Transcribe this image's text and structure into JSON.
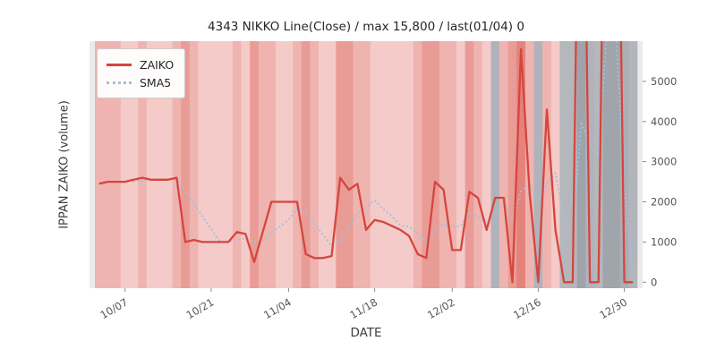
{
  "figure": {
    "title": "4343 NIKKO Line(Close) / max 15,800 / last(01/04) 0",
    "xlabel": "DATE",
    "ylabel": "IPPAN ZAIKO (volume)"
  },
  "chart_data": {
    "type": "line",
    "title": "4343 NIKKO Line(Close) / max 15,800 / last(01/04) 0",
    "xlabel": "DATE",
    "ylabel": "IPPAN ZAIKO (volume)",
    "ylim": [
      -150,
      6000
    ],
    "yticks": [
      0,
      1000,
      2000,
      3000,
      4000,
      5000
    ],
    "ytick_side": "right",
    "grid": false,
    "legend_position": "upper-left",
    "plot_bg": "#ebebeb",
    "dates": [
      "10/04",
      "10/05",
      "10/06",
      "10/07",
      "10/08",
      "10/11",
      "10/12",
      "10/13",
      "10/14",
      "10/15",
      "10/18",
      "10/19",
      "10/20",
      "10/21",
      "10/22",
      "10/25",
      "10/26",
      "10/27",
      "10/28",
      "10/29",
      "11/01",
      "11/02",
      "11/04",
      "11/05",
      "11/08",
      "11/09",
      "11/10",
      "11/11",
      "11/12",
      "11/15",
      "11/16",
      "11/17",
      "11/18",
      "11/19",
      "11/22",
      "11/24",
      "11/25",
      "11/26",
      "11/29",
      "11/30",
      "12/01",
      "12/02",
      "12/03",
      "12/06",
      "12/07",
      "12/08",
      "12/09",
      "12/10",
      "12/13",
      "12/14",
      "12/15",
      "12/16",
      "12/17",
      "12/20",
      "12/21",
      "12/22",
      "12/23",
      "12/24",
      "12/27",
      "12/28",
      "12/29",
      "12/30",
      "01/04"
    ],
    "xticks": [
      {
        "index": 3,
        "label": "10/07"
      },
      {
        "index": 13,
        "label": "10/21"
      },
      {
        "index": 22,
        "label": "11/04"
      },
      {
        "index": 32,
        "label": "11/18"
      },
      {
        "index": 41,
        "label": "12/02"
      },
      {
        "index": 51,
        "label": "12/16"
      },
      {
        "index": 61,
        "label": "12/30"
      }
    ],
    "series": [
      {
        "name": "ZAIKO",
        "color": "#d6453e",
        "style": "solid",
        "values": [
          2450,
          2500,
          2500,
          2500,
          2550,
          2600,
          2550,
          2550,
          2550,
          2600,
          1000,
          1050,
          1000,
          1000,
          1000,
          1000,
          1250,
          1200,
          500,
          1250,
          2000,
          2000,
          2000,
          2000,
          700,
          600,
          600,
          650,
          2600,
          2300,
          2450,
          1300,
          1550,
          1500,
          1400,
          1300,
          1150,
          700,
          600,
          2500,
          2300,
          800,
          800,
          2250,
          2100,
          1300,
          2100,
          2100,
          0,
          5800,
          2200,
          0,
          4300,
          1300,
          0,
          0,
          15800,
          0,
          0,
          15800,
          15800,
          0,
          0
        ]
      },
      {
        "name": "SMA5",
        "color": "#9ec2dd",
        "style": "dotted",
        "values": [
          null,
          null,
          null,
          null,
          2500,
          2530,
          2540,
          2550,
          2560,
          2570,
          2250,
          1950,
          1640,
          1330,
          1010,
          1010,
          1050,
          1090,
          990,
          1040,
          1240,
          1390,
          1550,
          1850,
          1740,
          1460,
          1180,
          910,
          1030,
          1350,
          1720,
          1860,
          2040,
          1820,
          1640,
          1410,
          1380,
          1210,
          1030,
          1250,
          1450,
          1380,
          1400,
          1730,
          1650,
          1450,
          1710,
          1970,
          1520,
          2260,
          2440,
          2020,
          2460,
          2720,
          1560,
          1120,
          4000,
          3420,
          3160,
          6300,
          6300,
          2400,
          150
        ]
      }
    ],
    "bands": [
      "#efb4b0",
      "#efb4b0",
      "#efb4b0",
      "#f4cbc8",
      "#f4cbc8",
      "#efb4b0",
      "#f4cbc8",
      "#f4cbc8",
      "#f4cbc8",
      "#efb4b0",
      "#e99b96",
      "#efb4b0",
      "#f4cbc8",
      "#f4cbc8",
      "#f4cbc8",
      "#f4cbc8",
      "#efb4b0",
      "#f4cbc8",
      "#e99b96",
      "#efb4b0",
      "#efb4b0",
      "#f4cbc8",
      "#f4cbc8",
      "#efb4b0",
      "#e99b96",
      "#efb4b0",
      "#f4cbc8",
      "#f4cbc8",
      "#e99b96",
      "#e99b96",
      "#efb4b0",
      "#efb4b0",
      "#f4cbc8",
      "#f4cbc8",
      "#f4cbc8",
      "#f4cbc8",
      "#f4cbc8",
      "#efb4b0",
      "#e99b96",
      "#e99b96",
      "#efb4b0",
      "#efb4b0",
      "#f4cbc8",
      "#e99b96",
      "#efb4b0",
      "#f4cbc8",
      "#b0b3b9",
      "#efb4b0",
      "#e99b96",
      "#e4827c",
      "#efb4b0",
      "#b0b3b9",
      "#efb4b0",
      "#f4cbc8",
      "#b4b7bc",
      "#b4b7bc",
      "#9fa3aa",
      "#b0b3b9",
      "#b4b7bc",
      "#a0a4ab",
      "#a0a4ab",
      "#abaeb5",
      "#b2b5bb"
    ],
    "tick_color": "#8a8a8a",
    "tick_label_color": "#555555"
  }
}
